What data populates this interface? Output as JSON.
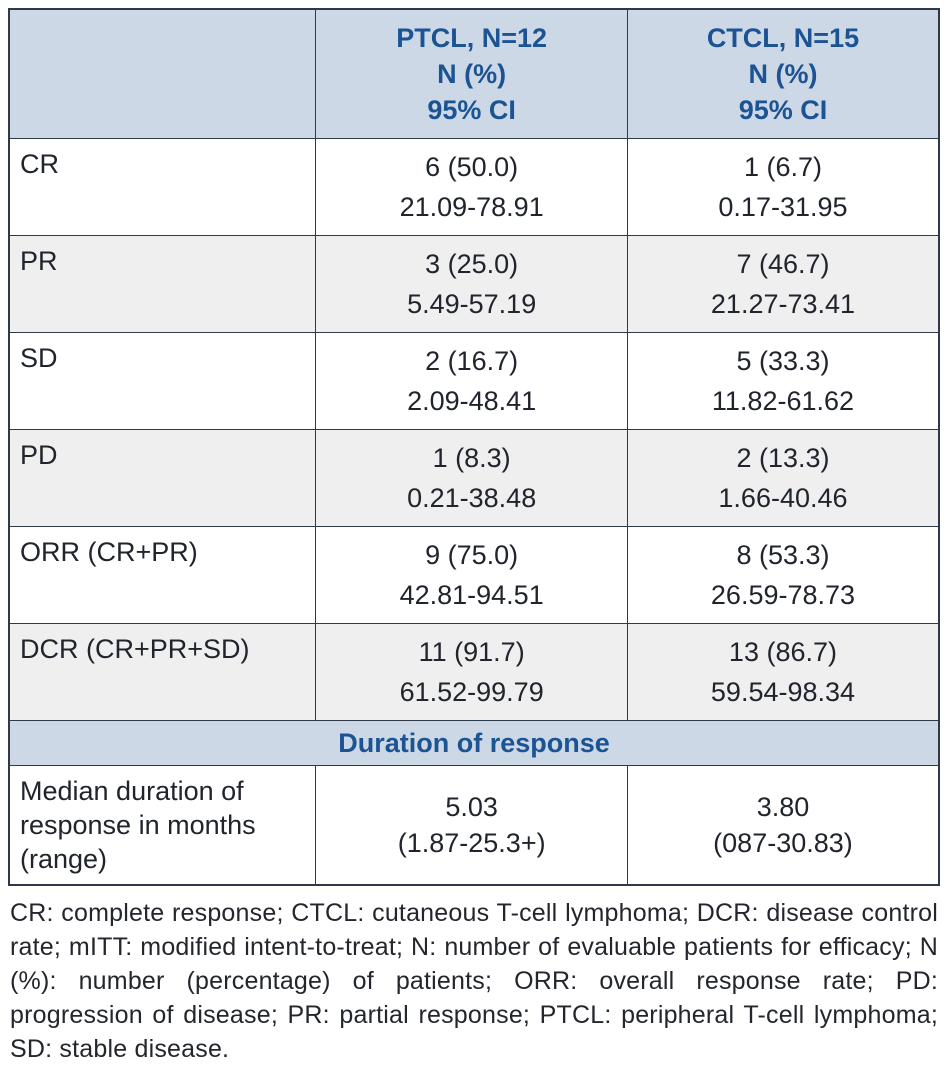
{
  "colors": {
    "header_bg": "#ccd8e6",
    "header_text": "#1b5393",
    "border": "#2e3a48",
    "row_alt_bg": "#efefef",
    "row_bg": "#ffffff",
    "body_text": "#20242c"
  },
  "table": {
    "columns": [
      {
        "line1": "PTCL, N=12",
        "line2": "N (%)",
        "line3": "95% CI"
      },
      {
        "line1": "CTCL, N=15",
        "line2": "N (%)",
        "line3": "95% CI"
      }
    ],
    "rows": [
      {
        "label": "CR",
        "ptcl_value": "6 (50.0)",
        "ptcl_ci": "21.09-78.91",
        "ctcl_value": "1 (6.7)",
        "ctcl_ci": "0.17-31.95"
      },
      {
        "label": "PR",
        "ptcl_value": "3 (25.0)",
        "ptcl_ci": "5.49-57.19",
        "ctcl_value": "7 (46.7)",
        "ctcl_ci": "21.27-73.41"
      },
      {
        "label": "SD",
        "ptcl_value": "2 (16.7)",
        "ptcl_ci": "2.09-48.41",
        "ctcl_value": "5 (33.3)",
        "ctcl_ci": "11.82-61.62"
      },
      {
        "label": "PD",
        "ptcl_value": "1 (8.3)",
        "ptcl_ci": "0.21-38.48",
        "ctcl_value": "2 (13.3)",
        "ctcl_ci": "1.66-40.46"
      },
      {
        "label": "ORR (CR+PR)",
        "ptcl_value": "9 (75.0)",
        "ptcl_ci": "42.81-94.51",
        "ctcl_value": "8 (53.3)",
        "ctcl_ci": "26.59-78.73"
      },
      {
        "label": "DCR (CR+PR+SD)",
        "ptcl_value": "11 (91.7)",
        "ptcl_ci": "61.52-99.79",
        "ctcl_value": "13 (86.7)",
        "ctcl_ci": "59.54-98.34"
      }
    ],
    "section_header": "Duration of response",
    "duration_row": {
      "label": "Median duration of response in months (range)",
      "ptcl_value": "5.03",
      "ptcl_range": "(1.87-25.3+)",
      "ctcl_value": "3.80",
      "ctcl_range": "(087-30.83)"
    }
  },
  "footnote": "CR: complete response; CTCL: cutaneous T-cell lymphoma; DCR: disease control rate; mITT: modified intent-to-treat; N: number of evaluable patients for efficacy; N (%): number (percentage) of patients; ORR: overall response rate; PD: progression of disease; PR: partial response; PTCL: peripheral T-cell lymphoma; SD: stable disease."
}
